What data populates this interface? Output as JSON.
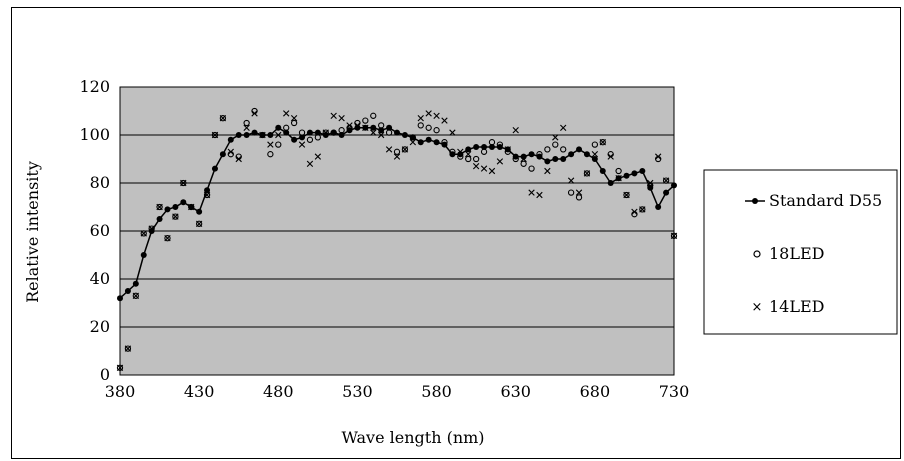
{
  "chart_data": {
    "type": "line",
    "title": "",
    "xlabel": "Wave length (nm)",
    "ylabel": "Relative intensity",
    "xlim": [
      380,
      730
    ],
    "ylim": [
      0,
      120
    ],
    "x_ticks": [
      "380",
      "430",
      "480",
      "530",
      "580",
      "630",
      "680",
      "730"
    ],
    "y_ticks": [
      "0",
      "20",
      "40",
      "60",
      "80",
      "100",
      "120"
    ],
    "grid": "horizontal",
    "legend_position": "right",
    "plot_background": "#c0c0c0",
    "x": [
      380,
      385,
      390,
      395,
      400,
      405,
      410,
      415,
      420,
      425,
      430,
      435,
      440,
      445,
      450,
      455,
      460,
      465,
      470,
      475,
      480,
      485,
      490,
      495,
      500,
      505,
      510,
      515,
      520,
      525,
      530,
      535,
      540,
      545,
      550,
      555,
      560,
      565,
      570,
      575,
      580,
      585,
      590,
      595,
      600,
      605,
      610,
      615,
      620,
      625,
      630,
      635,
      640,
      645,
      650,
      655,
      660,
      665,
      670,
      675,
      680,
      685,
      690,
      695,
      700,
      705,
      710,
      715,
      720,
      725,
      730
    ],
    "series": [
      {
        "name": "Standard D55",
        "marker": "filled-circle-line",
        "values": [
          32,
          35,
          38,
          50,
          60,
          65,
          69,
          70,
          72,
          70,
          68,
          77,
          86,
          92,
          98,
          100,
          100,
          101,
          100,
          100,
          103,
          101,
          98,
          99,
          101,
          101,
          100,
          101,
          100,
          102,
          103,
          103,
          103,
          102,
          103,
          101,
          100,
          99,
          97,
          98,
          97,
          96,
          92,
          92,
          94,
          95,
          95,
          95,
          95,
          94,
          91,
          91,
          92,
          91,
          89,
          90,
          90,
          92,
          94,
          92,
          90,
          85,
          80,
          82,
          83,
          84,
          85,
          78,
          70,
          76,
          79
        ]
      },
      {
        "name": "18LED",
        "marker": "open-circle",
        "values": [
          3,
          11,
          33,
          59,
          61,
          70,
          57,
          66,
          80,
          70,
          63,
          75,
          100,
          107,
          92,
          91,
          105,
          110,
          100,
          92,
          96,
          103,
          105,
          101,
          98,
          99,
          101,
          101,
          102,
          103,
          105,
          106,
          108,
          104,
          101,
          93,
          94,
          99,
          104,
          103,
          102,
          97,
          93,
          91,
          90,
          90,
          93,
          97,
          96,
          93,
          90,
          88,
          86,
          92,
          94,
          96,
          94,
          76,
          74,
          84,
          96,
          97,
          92,
          85,
          75,
          67,
          69,
          79,
          90,
          81,
          58
        ]
      },
      {
        "name": "14LED",
        "marker": "x",
        "values": [
          3,
          11,
          33,
          59,
          61,
          70,
          57,
          66,
          80,
          70,
          63,
          75,
          100,
          107,
          93,
          90,
          103,
          109,
          100,
          96,
          100,
          109,
          107,
          96,
          88,
          91,
          101,
          108,
          107,
          104,
          104,
          103,
          101,
          100,
          94,
          91,
          94,
          97,
          107,
          109,
          108,
          106,
          101,
          93,
          92,
          87,
          86,
          85,
          89,
          94,
          102,
          90,
          76,
          75,
          85,
          99,
          103,
          81,
          76,
          84,
          92,
          97,
          91,
          82,
          75,
          68,
          69,
          80,
          91,
          81,
          58
        ]
      }
    ]
  }
}
